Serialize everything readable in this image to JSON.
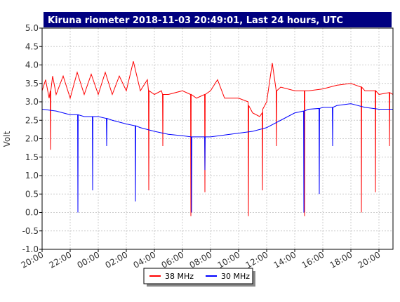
{
  "chart_data": {
    "type": "line",
    "title": "Kiruna riometer 2018-11-03 20:49:01, Last 24 hours, UTC",
    "y_label": "Volt",
    "grid": true,
    "legend": "bottom",
    "xlim": [
      0,
      25
    ],
    "xticks": [
      {
        "value": 0,
        "label": "20:00"
      },
      {
        "value": 2,
        "label": "22:00"
      },
      {
        "value": 4,
        "label": "00:00"
      },
      {
        "value": 6,
        "label": "02:00"
      },
      {
        "value": 8,
        "label": "04:00"
      },
      {
        "value": 10,
        "label": "06:00"
      },
      {
        "value": 12,
        "label": "08:00"
      },
      {
        "value": 14,
        "label": "10:00"
      },
      {
        "value": 16,
        "label": "12:00"
      },
      {
        "value": 18,
        "label": "14:00"
      },
      {
        "value": 20,
        "label": "16:00"
      },
      {
        "value": 22,
        "label": "18:00"
      },
      {
        "value": 24,
        "label": "20:00"
      }
    ],
    "ylim": [
      -1,
      5
    ],
    "yticks": [
      {
        "value": 5,
        "label": "5.0"
      },
      {
        "value": 4.5,
        "label": "4.5"
      },
      {
        "value": 4,
        "label": "4.0"
      },
      {
        "value": 3.5,
        "label": "3.5"
      },
      {
        "value": 3,
        "label": "3.0"
      },
      {
        "value": 2.5,
        "label": "2.5"
      },
      {
        "value": 2,
        "label": "2.0"
      },
      {
        "value": 1.5,
        "label": "1.5"
      },
      {
        "value": 1,
        "label": "1.0"
      },
      {
        "value": 0.5,
        "label": "0.5"
      },
      {
        "value": 0,
        "label": "0.0"
      },
      {
        "value": -0.5,
        "label": "-0.5"
      },
      {
        "value": -1,
        "label": "-1.0"
      }
    ],
    "series": [
      {
        "name": "38 MHz",
        "color": "#ff0000",
        "x": [
          0,
          0.25,
          0.5,
          0.58,
          0.6,
          0.62,
          0.75,
          1,
          1.5,
          2,
          2.5,
          3,
          3.5,
          4,
          4.5,
          5,
          5.5,
          6,
          6.5,
          7,
          7.5,
          7.58,
          7.6,
          7.62,
          8,
          8.5,
          8.58,
          8.6,
          8.62,
          9,
          10,
          10.58,
          10.6,
          10.62,
          11,
          11.58,
          11.6,
          11.62,
          12,
          12.5,
          13,
          14,
          14.68,
          14.7,
          14.72,
          15,
          15.5,
          15.68,
          15.7,
          15.72,
          16,
          16.4,
          16.68,
          16.7,
          16.72,
          17,
          18,
          18.68,
          18.7,
          18.72,
          19,
          20,
          21,
          22,
          22.73,
          22.75,
          22.77,
          23,
          23.73,
          23.75,
          23.77,
          24,
          24.73,
          24.75,
          24.77,
          25
        ],
        "values": [
          3.3,
          3.6,
          3.1,
          3.3,
          1.7,
          3.3,
          3.7,
          3.2,
          3.7,
          3.1,
          3.8,
          3.2,
          3.75,
          3.2,
          3.8,
          3.2,
          3.7,
          3.3,
          4.1,
          3.3,
          3.6,
          3.3,
          0.6,
          3.3,
          3.2,
          3.3,
          3.2,
          1.8,
          3.2,
          3.2,
          3.3,
          3.2,
          -0.1,
          3.2,
          3.1,
          3.2,
          0.55,
          3.2,
          3.3,
          3.6,
          3.1,
          3.1,
          3.0,
          -0.1,
          2.9,
          2.7,
          2.6,
          2.7,
          0.6,
          2.8,
          3.0,
          4.05,
          3.3,
          1.8,
          3.3,
          3.4,
          3.3,
          3.3,
          -0.1,
          3.3,
          3.3,
          3.35,
          3.45,
          3.5,
          3.4,
          0.0,
          3.4,
          3.3,
          3.3,
          0.55,
          3.3,
          3.2,
          3.25,
          1.8,
          3.25,
          3.2
        ]
      },
      {
        "name": "30 MHz",
        "color": "#0000ff",
        "x": [
          0,
          1,
          1.5,
          2,
          2.53,
          2.55,
          2.57,
          3,
          3.58,
          3.6,
          3.62,
          4,
          4.58,
          4.6,
          4.62,
          5,
          6,
          6.63,
          6.65,
          6.67,
          7,
          8,
          9,
          10,
          10.63,
          10.65,
          10.67,
          11,
          11.58,
          11.6,
          11.62,
          12,
          13,
          14,
          15,
          16,
          17,
          18,
          18.63,
          18.65,
          18.67,
          19,
          19.73,
          19.75,
          19.77,
          20,
          20.68,
          20.7,
          20.72,
          21,
          22,
          23,
          24,
          25
        ],
        "values": [
          2.8,
          2.75,
          2.7,
          2.65,
          2.65,
          0.0,
          2.65,
          2.6,
          2.6,
          0.6,
          2.6,
          2.6,
          2.55,
          1.8,
          2.55,
          2.5,
          2.4,
          2.35,
          0.3,
          2.35,
          2.3,
          2.2,
          2.12,
          2.08,
          2.05,
          0.0,
          2.05,
          2.05,
          2.05,
          1.15,
          2.05,
          2.05,
          2.1,
          2.15,
          2.2,
          2.3,
          2.5,
          2.7,
          2.75,
          0.0,
          2.75,
          2.8,
          2.82,
          0.5,
          2.82,
          2.85,
          2.85,
          1.8,
          2.85,
          2.9,
          2.95,
          2.85,
          2.8,
          2.8
        ]
      }
    ]
  }
}
